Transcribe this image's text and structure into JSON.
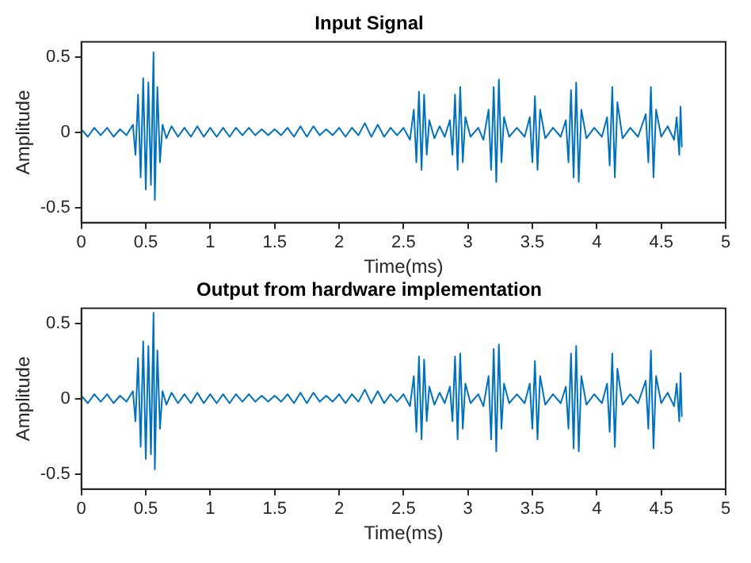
{
  "chart_data": [
    {
      "type": "line",
      "title": "Input Signal",
      "xlabel": "Time(ms)",
      "ylabel": "Amplitude",
      "x": [
        0,
        0.05,
        0.1,
        0.15,
        0.2,
        0.25,
        0.3,
        0.35,
        0.4,
        0.42,
        0.44,
        0.46,
        0.48,
        0.5,
        0.52,
        0.54,
        0.56,
        0.57,
        0.59,
        0.61,
        0.63,
        0.66,
        0.7,
        0.75,
        0.8,
        0.85,
        0.9,
        0.95,
        1.0,
        1.05,
        1.1,
        1.15,
        1.2,
        1.25,
        1.3,
        1.35,
        1.4,
        1.45,
        1.5,
        1.55,
        1.6,
        1.65,
        1.7,
        1.75,
        1.8,
        1.85,
        1.9,
        1.95,
        2.0,
        2.05,
        2.1,
        2.15,
        2.2,
        2.25,
        2.3,
        2.35,
        2.4,
        2.45,
        2.5,
        2.55,
        2.58,
        2.6,
        2.62,
        2.64,
        2.66,
        2.68,
        2.7,
        2.74,
        2.78,
        2.82,
        2.86,
        2.88,
        2.9,
        2.92,
        2.94,
        2.96,
        2.98,
        3.02,
        3.08,
        3.12,
        3.16,
        3.18,
        3.2,
        3.22,
        3.24,
        3.26,
        3.28,
        3.32,
        3.38,
        3.44,
        3.48,
        3.5,
        3.52,
        3.54,
        3.56,
        3.6,
        3.66,
        3.72,
        3.76,
        3.78,
        3.8,
        3.82,
        3.84,
        3.86,
        3.88,
        3.92,
        3.98,
        4.04,
        4.08,
        4.1,
        4.12,
        4.14,
        4.16,
        4.2,
        4.26,
        4.32,
        4.38,
        4.4,
        4.42,
        4.44,
        4.46,
        4.5,
        4.55,
        4.6,
        4.62,
        4.64,
        4.65,
        4.66
      ],
      "series": [
        {
          "color": "#0072bd",
          "values": [
            0.02,
            -0.03,
            0.03,
            -0.02,
            0.03,
            -0.03,
            0.02,
            -0.02,
            0.05,
            -0.15,
            0.25,
            -0.3,
            0.36,
            -0.38,
            0.33,
            -0.35,
            0.53,
            -0.45,
            0.3,
            -0.2,
            0.05,
            -0.04,
            0.04,
            -0.03,
            0.03,
            -0.03,
            0.04,
            -0.03,
            0.03,
            -0.03,
            0.03,
            -0.03,
            0.03,
            -0.02,
            0.03,
            -0.02,
            0.02,
            -0.02,
            0.02,
            -0.02,
            0.03,
            -0.03,
            0.04,
            -0.03,
            0.04,
            -0.02,
            0.02,
            -0.02,
            0.03,
            -0.03,
            0.03,
            -0.02,
            0.06,
            -0.03,
            0.05,
            -0.03,
            0.03,
            -0.02,
            0.03,
            -0.05,
            0.15,
            -0.2,
            0.27,
            -0.25,
            0.25,
            -0.15,
            0.08,
            -0.04,
            0.04,
            -0.03,
            0.08,
            -0.15,
            0.25,
            -0.25,
            0.3,
            -0.2,
            0.1,
            -0.03,
            0.03,
            -0.05,
            0.15,
            -0.25,
            0.3,
            -0.33,
            0.35,
            -0.2,
            0.1,
            -0.03,
            0.03,
            -0.03,
            0.1,
            -0.2,
            0.24,
            -0.25,
            0.15,
            -0.04,
            0.03,
            -0.03,
            0.08,
            -0.2,
            0.28,
            -0.3,
            0.33,
            -0.33,
            0.15,
            -0.04,
            0.03,
            -0.03,
            0.1,
            -0.22,
            0.3,
            -0.3,
            0.2,
            -0.04,
            0.03,
            -0.03,
            0.12,
            -0.2,
            0.3,
            -0.3,
            0.15,
            -0.03,
            0.04,
            -0.05,
            0.1,
            -0.15,
            0.17,
            -0.1
          ]
        }
      ],
      "xlim": [
        0,
        5
      ],
      "xticks": [
        0,
        0.5,
        1,
        1.5,
        2,
        2.5,
        3,
        3.5,
        4,
        4.5,
        5
      ],
      "ylim": [
        -0.6,
        0.6
      ],
      "yticks": [
        -0.5,
        0,
        0.5
      ]
    },
    {
      "type": "line",
      "title": "Output from hardware implementation",
      "xlabel": "Time(ms)",
      "ylabel": "Amplitude",
      "x": [
        0,
        0.05,
        0.1,
        0.15,
        0.2,
        0.25,
        0.3,
        0.35,
        0.4,
        0.42,
        0.44,
        0.46,
        0.48,
        0.5,
        0.52,
        0.54,
        0.56,
        0.57,
        0.59,
        0.61,
        0.63,
        0.66,
        0.7,
        0.75,
        0.8,
        0.85,
        0.9,
        0.95,
        1.0,
        1.05,
        1.1,
        1.15,
        1.2,
        1.25,
        1.3,
        1.35,
        1.4,
        1.45,
        1.5,
        1.55,
        1.6,
        1.65,
        1.7,
        1.75,
        1.8,
        1.85,
        1.9,
        1.95,
        2.0,
        2.05,
        2.1,
        2.15,
        2.2,
        2.25,
        2.3,
        2.35,
        2.4,
        2.45,
        2.5,
        2.55,
        2.58,
        2.6,
        2.62,
        2.64,
        2.66,
        2.68,
        2.7,
        2.74,
        2.78,
        2.82,
        2.86,
        2.88,
        2.9,
        2.92,
        2.94,
        2.96,
        2.98,
        3.02,
        3.08,
        3.12,
        3.16,
        3.18,
        3.2,
        3.22,
        3.24,
        3.26,
        3.28,
        3.32,
        3.38,
        3.44,
        3.48,
        3.5,
        3.52,
        3.54,
        3.56,
        3.6,
        3.66,
        3.72,
        3.76,
        3.78,
        3.8,
        3.82,
        3.84,
        3.86,
        3.88,
        3.92,
        3.98,
        4.04,
        4.08,
        4.1,
        4.12,
        4.14,
        4.16,
        4.2,
        4.26,
        4.32,
        4.38,
        4.4,
        4.42,
        4.44,
        4.46,
        4.5,
        4.55,
        4.6,
        4.62,
        4.64,
        4.65,
        4.66
      ],
      "series": [
        {
          "color": "#0072bd",
          "values": [
            0.02,
            -0.03,
            0.03,
            -0.02,
            0.03,
            -0.03,
            0.02,
            -0.02,
            0.05,
            -0.15,
            0.27,
            -0.32,
            0.38,
            -0.4,
            0.35,
            -0.37,
            0.57,
            -0.47,
            0.32,
            -0.2,
            0.05,
            -0.04,
            0.04,
            -0.03,
            0.03,
            -0.03,
            0.04,
            -0.03,
            0.03,
            -0.03,
            0.03,
            -0.03,
            0.03,
            -0.02,
            0.03,
            -0.02,
            0.02,
            -0.02,
            0.02,
            -0.02,
            0.03,
            -0.03,
            0.04,
            -0.03,
            0.04,
            -0.02,
            0.02,
            -0.02,
            0.03,
            -0.03,
            0.03,
            -0.02,
            0.06,
            -0.03,
            0.05,
            -0.03,
            0.03,
            -0.02,
            0.03,
            -0.05,
            0.15,
            -0.22,
            0.28,
            -0.27,
            0.26,
            -0.15,
            0.08,
            -0.04,
            0.04,
            -0.03,
            0.08,
            -0.15,
            0.28,
            -0.27,
            0.3,
            -0.2,
            0.1,
            -0.03,
            0.03,
            -0.05,
            0.15,
            -0.27,
            0.33,
            -0.35,
            0.36,
            -0.2,
            0.1,
            -0.03,
            0.03,
            -0.03,
            0.1,
            -0.2,
            0.25,
            -0.27,
            0.15,
            -0.04,
            0.03,
            -0.03,
            0.08,
            -0.2,
            0.3,
            -0.33,
            0.35,
            -0.35,
            0.15,
            -0.04,
            0.03,
            -0.03,
            0.1,
            -0.22,
            0.3,
            -0.32,
            0.2,
            -0.04,
            0.03,
            -0.03,
            0.12,
            -0.2,
            0.32,
            -0.33,
            0.15,
            -0.03,
            0.04,
            -0.05,
            0.1,
            -0.15,
            0.17,
            -0.12
          ]
        }
      ],
      "xlim": [
        0,
        5
      ],
      "xticks": [
        0,
        0.5,
        1,
        1.5,
        2,
        2.5,
        3,
        3.5,
        4,
        4.5,
        5
      ],
      "ylim": [
        -0.6,
        0.6
      ],
      "yticks": [
        -0.5,
        0,
        0.5
      ]
    }
  ]
}
